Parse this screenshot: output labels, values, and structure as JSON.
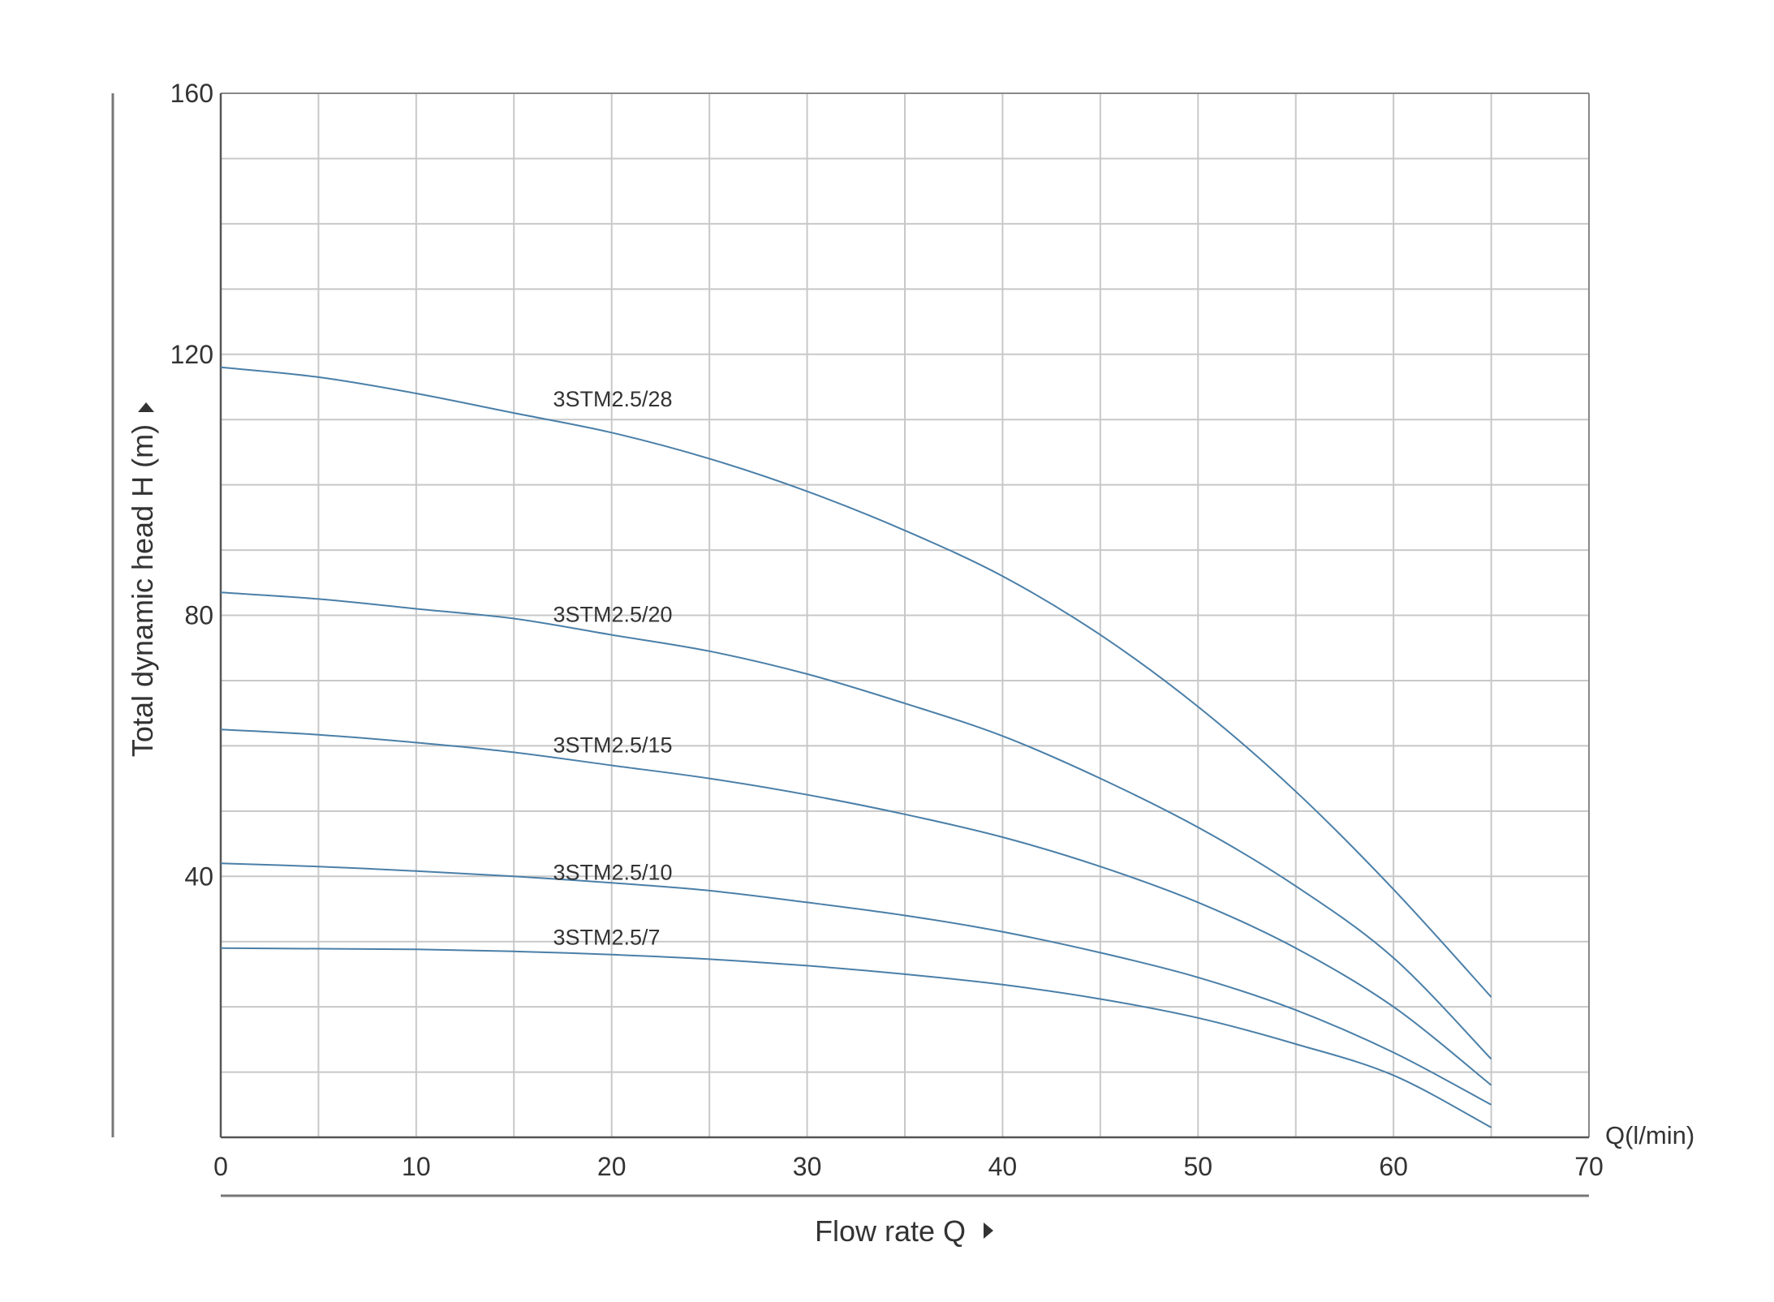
{
  "chart_data": {
    "type": "line",
    "title": "",
    "xlabel": "Flow rate Q",
    "ylabel": "Total dynamic head H (m)",
    "x_unit_label": "Q(l/min)",
    "xlim": [
      0,
      70
    ],
    "ylim": [
      0,
      160
    ],
    "x_ticks": [
      "0",
      "10",
      "20",
      "30",
      "40",
      "50",
      "60",
      "70"
    ],
    "y_ticks": [
      "40",
      "80",
      "120",
      "160"
    ],
    "x_minor_step": 5,
    "y_minor_step": 10,
    "grid": true,
    "line_color": "#4a7fa8",
    "grid_color": "#c8c8c8",
    "x": [
      0,
      5,
      10,
      15,
      20,
      25,
      30,
      35,
      40,
      45,
      50,
      55,
      60,
      65
    ],
    "series": [
      {
        "name": "3STM2.5/28",
        "values": [
          118,
          116.5,
          114,
          111,
          108,
          104,
          99,
          93,
          86,
          77,
          66,
          53,
          38,
          21.5
        ]
      },
      {
        "name": "3STM2.5/20",
        "values": [
          83.5,
          82.5,
          81,
          79.5,
          77,
          74.5,
          71,
          66.5,
          61.5,
          55,
          47.5,
          38.5,
          27.5,
          12
        ]
      },
      {
        "name": "3STM2.5/15",
        "values": [
          62.5,
          61.7,
          60.5,
          59,
          57,
          55,
          52.5,
          49.5,
          46,
          41.5,
          36,
          29,
          20,
          8
        ]
      },
      {
        "name": "3STM2.5/10",
        "values": [
          42,
          41.5,
          40.8,
          40,
          39,
          37.8,
          36,
          34,
          31.5,
          28.3,
          24.5,
          19.5,
          13,
          5
        ]
      },
      {
        "name": "3STM2.5/7",
        "values": [
          29,
          28.9,
          28.8,
          28.5,
          28,
          27.3,
          26.3,
          25,
          23.4,
          21.2,
          18.3,
          14.3,
          9.5,
          1.5
        ]
      }
    ],
    "label_positions": [
      {
        "x": 17,
        "y": 112
      },
      {
        "x": 17,
        "y": 79
      },
      {
        "x": 17,
        "y": 59
      },
      {
        "x": 17,
        "y": 39.5
      },
      {
        "x": 17,
        "y": 29.5
      }
    ]
  }
}
